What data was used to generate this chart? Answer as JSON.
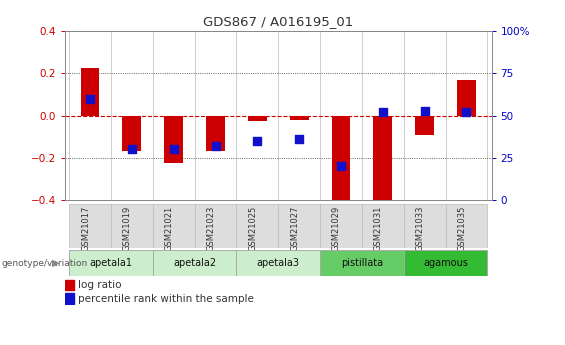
{
  "title": "GDS867 / A016195_01",
  "samples": [
    "GSM21017",
    "GSM21019",
    "GSM21021",
    "GSM21023",
    "GSM21025",
    "GSM21027",
    "GSM21029",
    "GSM21031",
    "GSM21033",
    "GSM21035"
  ],
  "log_ratio": [
    0.225,
    -0.17,
    -0.225,
    -0.17,
    -0.025,
    -0.02,
    -0.42,
    -0.42,
    -0.09,
    0.17
  ],
  "percentile_rank": [
    60,
    30,
    30,
    32,
    35,
    36,
    20,
    52,
    53,
    52
  ],
  "ylim": [
    -0.4,
    0.4
  ],
  "yticks_left": [
    -0.4,
    -0.2,
    0.0,
    0.2,
    0.4
  ],
  "right_ytick_values": [
    0,
    25,
    50,
    75,
    100
  ],
  "right_ytick_labels": [
    "0",
    "25",
    "50",
    "75",
    "100%"
  ],
  "bar_color": "#cc0000",
  "dot_color": "#1111cc",
  "zero_line_color": "#cc0000",
  "dotted_line_color": "#333333",
  "bar_color_red": "#cc0000",
  "groups": [
    {
      "name": "apetala1",
      "samples": [
        0,
        1
      ],
      "color": "#cceecc"
    },
    {
      "name": "apetala2",
      "samples": [
        2,
        3
      ],
      "color": "#cceecc"
    },
    {
      "name": "apetala3",
      "samples": [
        4,
        5
      ],
      "color": "#cceecc"
    },
    {
      "name": "pistillata",
      "samples": [
        6,
        7
      ],
      "color": "#66cc66"
    },
    {
      "name": "agamous",
      "samples": [
        8,
        9
      ],
      "color": "#33bb33"
    }
  ],
  "title_color": "#333333",
  "bar_width": 0.45,
  "dot_size": 28,
  "genotype_label": "genotype/variation",
  "legend_log_ratio": "log ratio",
  "legend_percentile": "percentile rank within the sample",
  "right_axis_color": "#0000cc",
  "left_axis_color": "#cc0000",
  "left_y_label_color": "#cc0000",
  "tick_label_color_gray": "#666666"
}
